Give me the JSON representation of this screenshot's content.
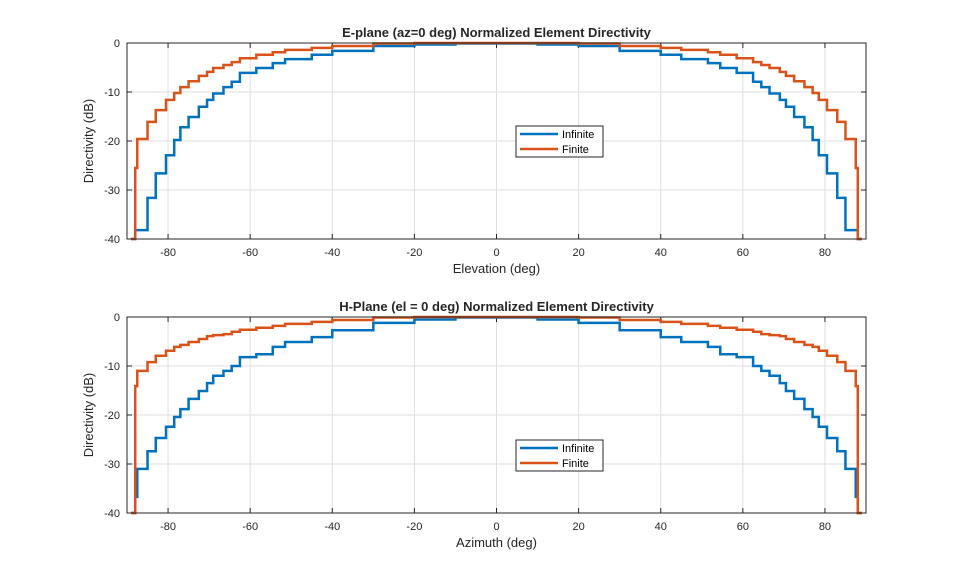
{
  "chart_data": [
    {
      "type": "line",
      "title": "E-plane (az=0 deg) Normalized Element Directivity",
      "xlabel": "Elevation (deg)",
      "ylabel": "Directivity (dB)",
      "xlim": [
        -90,
        90
      ],
      "ylim": [
        -40,
        0
      ],
      "xticks": [
        -80,
        -60,
        -40,
        -20,
        0,
        20,
        40,
        60,
        80
      ],
      "yticks": [
        -40,
        -30,
        -20,
        -10,
        0
      ],
      "grid": true,
      "legend_position": "center-right",
      "x": [
        -89,
        -88,
        -87.5,
        -85,
        -83,
        -80.5,
        -78.5,
        -77,
        -75,
        -72.5,
        -70.5,
        -69,
        -66.5,
        -64.5,
        -62.5,
        -58.5,
        -54.5,
        -51.5,
        -45,
        -40,
        -30,
        -20,
        -10,
        0,
        10,
        20,
        30,
        40,
        45,
        51.5,
        54.5,
        58.5,
        62.5,
        64.5,
        66.5,
        69,
        70.5,
        72.5,
        75,
        77,
        78.5,
        80.5,
        83,
        85,
        87.5,
        88,
        89
      ],
      "series": [
        {
          "name": "Infinite",
          "color": "#0072BD",
          "values": [
            -40,
            -38.2,
            -38.2,
            -31.6,
            -26.6,
            -22.9,
            -19.8,
            -17.2,
            -15.1,
            -13,
            -11.6,
            -10.3,
            -9,
            -7.9,
            -6.1,
            -5.1,
            -4.1,
            -3.3,
            -2.4,
            -1.6,
            -0.6,
            -0.3,
            -0.1,
            0,
            -0.1,
            -0.3,
            -0.6,
            -1.6,
            -2.4,
            -3.3,
            -4.1,
            -5.1,
            -6.1,
            -7.9,
            -9,
            -10.3,
            -11.6,
            -13,
            -15.1,
            -17.2,
            -19.8,
            -22.9,
            -26.6,
            -31.6,
            -38.2,
            -38.2,
            -40
          ]
        },
        {
          "name": "Finite",
          "color": "#D95319",
          "values": [
            -40,
            -25.5,
            -19.6,
            -16.1,
            -13.7,
            -11.6,
            -10.2,
            -9,
            -7.8,
            -6.7,
            -5.9,
            -5.1,
            -4.5,
            -3.9,
            -3.1,
            -2.4,
            -1.9,
            -1.4,
            -1,
            -0.6,
            -0.1,
            0,
            0,
            0,
            0,
            0,
            -0.1,
            -0.6,
            -1,
            -1.4,
            -1.9,
            -2.4,
            -3.1,
            -3.9,
            -4.5,
            -5.1,
            -5.9,
            -6.7,
            -7.8,
            -9,
            -10.2,
            -11.6,
            -13.7,
            -16.1,
            -19.6,
            -25.5,
            -40
          ]
        }
      ]
    },
    {
      "type": "line",
      "title": "H-Plane (el = 0 deg) Normalized Element Directivity",
      "xlabel": "Azimuth (deg)",
      "ylabel": "Directivity (dB)",
      "xlim": [
        -90,
        90
      ],
      "ylim": [
        -40,
        0
      ],
      "xticks": [
        -80,
        -60,
        -40,
        -20,
        0,
        20,
        40,
        60,
        80
      ],
      "yticks": [
        -40,
        -30,
        -20,
        -10,
        0
      ],
      "grid": true,
      "legend_position": "center-right",
      "x": [
        -89,
        -88,
        -87.5,
        -85,
        -83,
        -80.5,
        -78.5,
        -77,
        -75,
        -72.5,
        -70.5,
        -69,
        -66.5,
        -64.5,
        -62.5,
        -58.5,
        -54.5,
        -51.5,
        -45,
        -40,
        -30,
        -20,
        -10,
        0,
        10,
        20,
        30,
        40,
        45,
        51.5,
        54.5,
        58.5,
        62.5,
        64.5,
        66.5,
        69,
        70.5,
        72.5,
        75,
        77,
        78.5,
        80.5,
        83,
        85,
        87.5,
        88,
        89
      ],
      "series": [
        {
          "name": "Infinite",
          "color": "#0072BD",
          "values": [
            -40,
            -36.7,
            -31,
            -27.4,
            -24.7,
            -22.4,
            -20.4,
            -18.8,
            -16.7,
            -15.1,
            -13.5,
            -12,
            -11,
            -10,
            -8.2,
            -7.6,
            -6.1,
            -5.1,
            -4.1,
            -2.7,
            -1.2,
            -0.5,
            -0.1,
            0,
            -0.1,
            -0.5,
            -1.2,
            -2.7,
            -4.1,
            -5.1,
            -6.1,
            -7.6,
            -8.2,
            -10,
            -11,
            -12,
            -13.5,
            -15.1,
            -16.7,
            -18.8,
            -20.4,
            -22.4,
            -24.7,
            -27.4,
            -31,
            -36.7,
            -40
          ]
        },
        {
          "name": "Finite",
          "color": "#D95319",
          "values": [
            -40,
            -14.1,
            -11,
            -9.2,
            -7.9,
            -6.9,
            -6.1,
            -5.7,
            -5.1,
            -4.5,
            -3.9,
            -3.7,
            -3.5,
            -3,
            -2.6,
            -2.2,
            -1.8,
            -1.4,
            -1,
            -0.6,
            -0.1,
            0,
            0,
            0,
            0,
            0,
            -0.1,
            -0.6,
            -1,
            -1.4,
            -1.8,
            -2.2,
            -2.6,
            -3,
            -3.5,
            -3.7,
            -3.9,
            -4.5,
            -5.1,
            -5.7,
            -6.1,
            -6.9,
            -7.9,
            -9.2,
            -11,
            -14.1,
            -40
          ]
        }
      ]
    }
  ]
}
